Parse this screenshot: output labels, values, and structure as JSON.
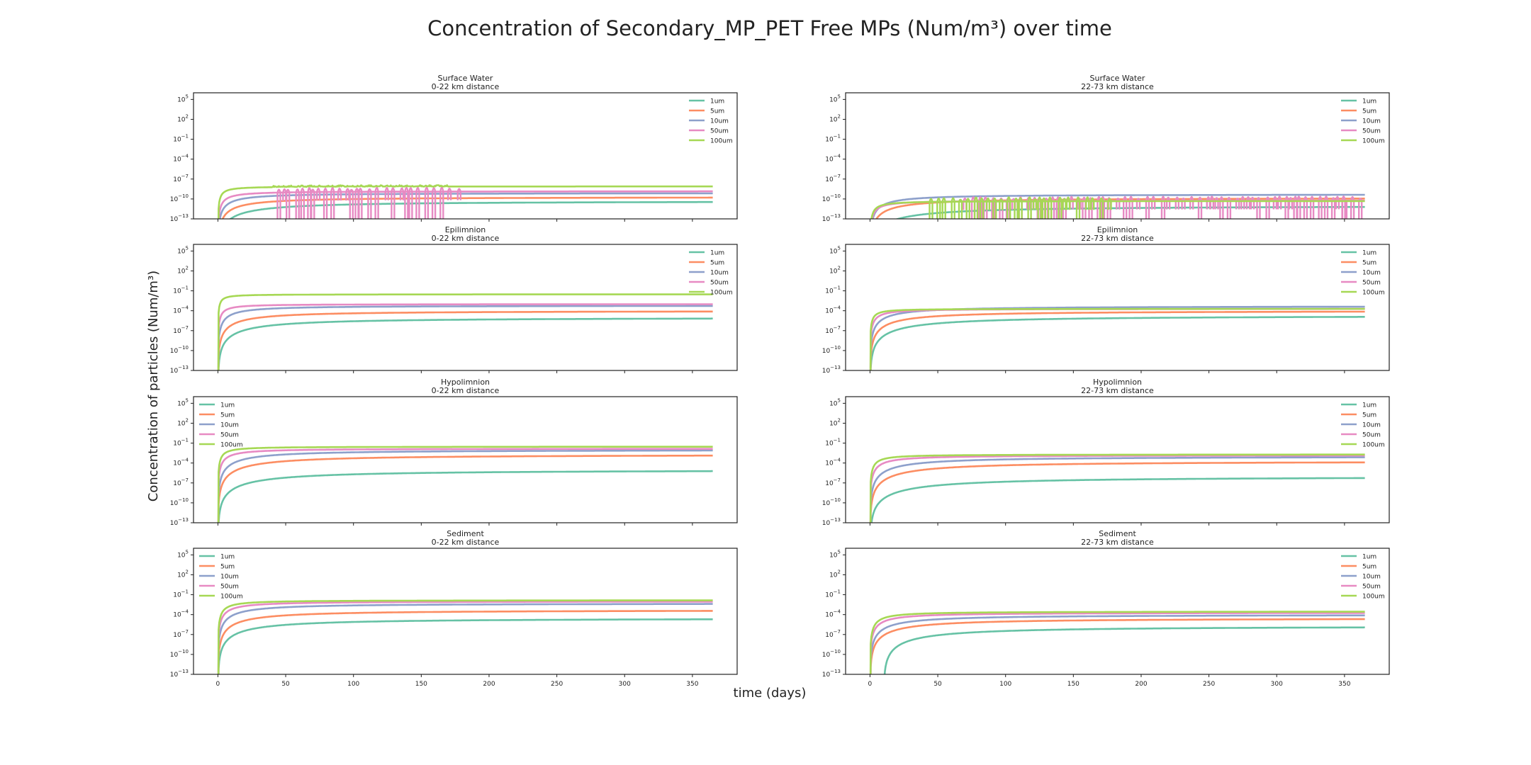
{
  "figure": {
    "title": "Concentration of Secondary_MP_PET Free MPs (Num/m³) over time",
    "ylabel": "Concentration of particles (Num/m³)",
    "xlabel": "time (days)",
    "colors": [
      "#66c2a5",
      "#fc8d62",
      "#8da0cb",
      "#e78ac3",
      "#a6d854"
    ],
    "xticks": [
      0,
      50,
      100,
      150,
      200,
      250,
      300,
      350
    ],
    "yticks_exp": [
      5,
      2,
      -1,
      -4,
      -7,
      -10,
      -13
    ]
  },
  "chart_data": [
    {
      "type": "line",
      "y_scale": "log",
      "compartment": "Surface Water",
      "distance": "0-22 km distance",
      "xlim": [
        -18,
        383
      ],
      "ylim": [
        1e-13,
        1000000.0
      ],
      "legend": "top-right",
      "series": [
        {
          "name": "1um",
          "start": 0,
          "plateau": 5e-11,
          "rise": 35,
          "noise": 0
        },
        {
          "name": "5um",
          "start": 0,
          "plateau": 2e-10,
          "rise": 20,
          "noise": 0
        },
        {
          "name": "10um",
          "start": 0,
          "plateau": 8e-10,
          "rise": 12,
          "noise": 0
        },
        {
          "name": "50um",
          "start": 0,
          "plateau": 1.5e-09,
          "rise": 6,
          "noise": 1,
          "noise_end": 180
        },
        {
          "name": "100um",
          "start": 0,
          "plateau": 8e-09,
          "rise": 3,
          "noise": 0,
          "wiggle_end": 170
        }
      ]
    },
    {
      "type": "line",
      "y_scale": "log",
      "compartment": "Surface Water",
      "distance": "22-73 km distance",
      "xlim": [
        -18,
        383
      ],
      "ylim": [
        1e-13,
        1000000.0
      ],
      "legend": "top-right",
      "series": [
        {
          "name": "1um",
          "start": 0,
          "plateau": 1e-11,
          "rise": 45,
          "noise": 0
        },
        {
          "name": "5um",
          "start": 0,
          "plateau": 1.5e-10,
          "rise": 25,
          "noise": 0
        },
        {
          "name": "10um",
          "start": 0,
          "plateau": 5e-10,
          "rise": 15,
          "noise": 0
        },
        {
          "name": "50um",
          "start": 0,
          "plateau": 6e-11,
          "rise": 6,
          "noise": 2,
          "noise_end": 365
        },
        {
          "name": "100um",
          "start": 0,
          "plateau": 5e-11,
          "rise": 4,
          "noise": 1,
          "noise_end": 180
        }
      ]
    },
    {
      "type": "line",
      "y_scale": "log",
      "compartment": "Epilimnion",
      "distance": "0-22 km distance",
      "xlim": [
        -18,
        383
      ],
      "ylim": [
        1e-13,
        1000000.0
      ],
      "legend": "top-right",
      "series": [
        {
          "name": "1um",
          "start": 0,
          "plateau": 1e-05,
          "rise": 40,
          "noise": 0
        },
        {
          "name": "5um",
          "start": 0,
          "plateau": 0.0001,
          "rise": 25,
          "noise": 0
        },
        {
          "name": "10um",
          "start": 0,
          "plateau": 0.0006,
          "rise": 12,
          "noise": 0
        },
        {
          "name": "50um",
          "start": 0,
          "plateau": 0.001,
          "rise": 4,
          "noise": 0
        },
        {
          "name": "100um",
          "start": 0,
          "plateau": 0.03,
          "rise": 2,
          "noise": 0
        }
      ]
    },
    {
      "type": "line",
      "y_scale": "log",
      "compartment": "Epilimnion",
      "distance": "22-73 km distance",
      "xlim": [
        -18,
        383
      ],
      "ylim": [
        1e-13,
        1000000.0
      ],
      "legend": "top-right",
      "series": [
        {
          "name": "1um",
          "start": 0,
          "plateau": 2e-05,
          "rise": 50,
          "noise": 0
        },
        {
          "name": "5um",
          "start": 0,
          "plateau": 0.0001,
          "rise": 30,
          "noise": 0
        },
        {
          "name": "10um",
          "start": 0,
          "plateau": 0.0005,
          "rise": 20,
          "noise": 0
        },
        {
          "name": "50um",
          "start": 0,
          "plateau": 0.0002,
          "rise": 6,
          "noise": 0
        },
        {
          "name": "100um",
          "start": 0,
          "plateau": 0.0002,
          "rise": 3,
          "noise": 0
        }
      ]
    },
    {
      "type": "line",
      "y_scale": "log",
      "compartment": "Hypolimnion",
      "distance": "0-22 km distance",
      "xlim": [
        -18,
        383
      ],
      "ylim": [
        1e-13,
        1000000.0
      ],
      "legend": "top-left",
      "series": [
        {
          "name": "1um",
          "start": 0,
          "plateau": 1e-05,
          "rise": 50,
          "noise": 0
        },
        {
          "name": "5um",
          "start": 0,
          "plateau": 0.002,
          "rise": 40,
          "noise": 0
        },
        {
          "name": "10um",
          "start": 0,
          "plateau": 0.01,
          "rise": 25,
          "noise": 0
        },
        {
          "name": "50um",
          "start": 0,
          "plateau": 0.015,
          "rise": 8,
          "noise": 0
        },
        {
          "name": "100um",
          "start": 0,
          "plateau": 0.03,
          "rise": 4,
          "noise": 0
        }
      ]
    },
    {
      "type": "line",
      "y_scale": "log",
      "compartment": "Hypolimnion",
      "distance": "22-73 km distance",
      "xlim": [
        -18,
        383
      ],
      "ylim": [
        1e-13,
        1000000.0
      ],
      "legend": "top-right",
      "series": [
        {
          "name": "1um",
          "start": 0,
          "plateau": 1e-06,
          "rise": 60,
          "noise": 0
        },
        {
          "name": "5um",
          "start": 0,
          "plateau": 0.0002,
          "rise": 45,
          "noise": 0
        },
        {
          "name": "10um",
          "start": 0,
          "plateau": 0.001,
          "rise": 30,
          "noise": 0
        },
        {
          "name": "50um",
          "start": 0,
          "plateau": 0.0015,
          "rise": 10,
          "noise": 0
        },
        {
          "name": "100um",
          "start": 0,
          "plateau": 0.002,
          "rise": 5,
          "noise": 0
        }
      ]
    },
    {
      "type": "line",
      "y_scale": "log",
      "compartment": "Sediment",
      "distance": "0-22 km distance",
      "xlim": [
        -18,
        383
      ],
      "ylim": [
        1e-13,
        1000000.0
      ],
      "legend": "top-left",
      "series": [
        {
          "name": "1um",
          "start": 0,
          "plateau": 3e-05,
          "rise": 40,
          "noise": 0
        },
        {
          "name": "5um",
          "start": 0,
          "plateau": 0.0005,
          "rise": 30,
          "noise": 0
        },
        {
          "name": "10um",
          "start": 0,
          "plateau": 0.005,
          "rise": 20,
          "noise": 0
        },
        {
          "name": "50um",
          "start": 0,
          "plateau": 0.01,
          "rise": 10,
          "noise": 0
        },
        {
          "name": "100um",
          "start": 0,
          "plateau": 0.015,
          "rise": 6,
          "noise": 0
        }
      ]
    },
    {
      "type": "line",
      "y_scale": "log",
      "compartment": "Sediment",
      "distance": "22-73 km distance",
      "xlim": [
        -18,
        383
      ],
      "ylim": [
        1e-13,
        1000000.0
      ],
      "legend": "top-right",
      "series": [
        {
          "name": "1um",
          "start": 10,
          "plateau": 2e-06,
          "rise": 50,
          "noise": 0
        },
        {
          "name": "5um",
          "start": 0,
          "plateau": 3e-05,
          "rise": 35,
          "noise": 0
        },
        {
          "name": "10um",
          "start": 0,
          "plateau": 0.0001,
          "rise": 25,
          "noise": 0
        },
        {
          "name": "50um",
          "start": 0,
          "plateau": 0.0002,
          "rise": 12,
          "noise": 0
        },
        {
          "name": "100um",
          "start": 0,
          "plateau": 0.0003,
          "rise": 8,
          "noise": 0
        }
      ]
    }
  ]
}
